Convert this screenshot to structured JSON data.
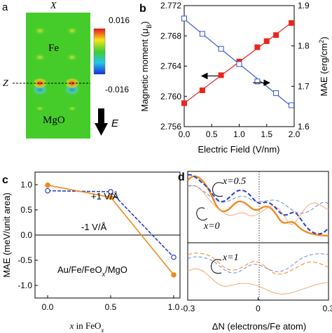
{
  "panels": {
    "a": {
      "label": "a",
      "top_label": "X",
      "z_label": "Z",
      "fe_label": "Fe",
      "mgo_label": "MgO",
      "colorbar_max": "0.016",
      "colorbar_min": "-0.016",
      "field_label": "E"
    },
    "b": {
      "label": "b"
    },
    "c": {
      "label": "c"
    },
    "d": {
      "label": "d",
      "annotations": [
        "x=0.5",
        "x=0",
        "x=1"
      ]
    }
  },
  "chart_data": [
    {
      "panel": "b",
      "type": "scatter",
      "xlabel": "Electric Field (V/nm)",
      "ylabel": "Magnetic moment (μB)",
      "y2label": "MAE (erg/cm²)",
      "xlim": [
        0.0,
        2.0
      ],
      "ylim": [
        2.756,
        2.772
      ],
      "y2lim": [
        1.6,
        1.9
      ],
      "x_ticks": [
        "0.0",
        "0.5",
        "1.0",
        "1.5",
        "2.0"
      ],
      "y_ticks": [
        "2.756",
        "2.760",
        "2.764",
        "2.768",
        "2.772"
      ],
      "y2_ticks": [
        "1.6",
        "1.7",
        "1.8",
        "1.9"
      ],
      "series": [
        {
          "axis": "left",
          "color": "#e8261c",
          "marker": "filled-square",
          "x": [
            0.0,
            0.33,
            0.67,
            1.0,
            1.33,
            1.5,
            1.67,
            1.95
          ],
          "y": [
            2.7591,
            2.7608,
            2.7628,
            2.7646,
            2.7665,
            2.7673,
            2.7681,
            2.7697
          ]
        },
        {
          "axis": "right",
          "color": "#3355cc",
          "marker": "open-square",
          "x": [
            0.0,
            0.33,
            0.67,
            1.0,
            1.33,
            1.67,
            1.95
          ],
          "y": [
            1.868,
            1.83,
            1.793,
            1.755,
            1.712,
            1.683,
            1.653
          ]
        }
      ],
      "arrows": [
        {
          "direction": "left",
          "x_from": 0.62,
          "x_to": 0.32,
          "y": 2.7627
        },
        {
          "direction": "right",
          "x_from": 1.25,
          "x_to": 1.55,
          "y": 2.7618
        }
      ]
    },
    {
      "panel": "c",
      "type": "line",
      "xlabel": "x in FeOx",
      "ylabel": "MAE (meV/unit area)",
      "xlim": [
        -0.1,
        1.05
      ],
      "ylim": [
        -1.25,
        1.25
      ],
      "x_ticks": [
        "0.0",
        "0.5",
        "1.0"
      ],
      "y_ticks": [
        "1.0",
        "0.5",
        "0.0",
        "-0.5",
        "-1.0"
      ],
      "annotation": "Au/Fe/FeOx/MgO",
      "series": [
        {
          "name": "+1 V/Å",
          "color": "#2a3fc4",
          "style": "dashed",
          "marker": "open-circle",
          "x": [
            0.0,
            0.5,
            1.0
          ],
          "y": [
            0.88,
            0.86,
            -0.44
          ]
        },
        {
          "name": "-1 V/Å",
          "color": "#f28a1e",
          "style": "solid",
          "marker": "filled-circle",
          "x": [
            0.0,
            0.5,
            1.0
          ],
          "y": [
            0.99,
            0.75,
            -0.79
          ]
        }
      ]
    },
    {
      "panel": "d",
      "type": "line",
      "xlabel": "ΔN (electrons/Fe atom)",
      "xlim": [
        -0.3,
        0.3
      ],
      "x_ticks": [
        "-0.3",
        "0",
        "0.3"
      ]
    }
  ]
}
